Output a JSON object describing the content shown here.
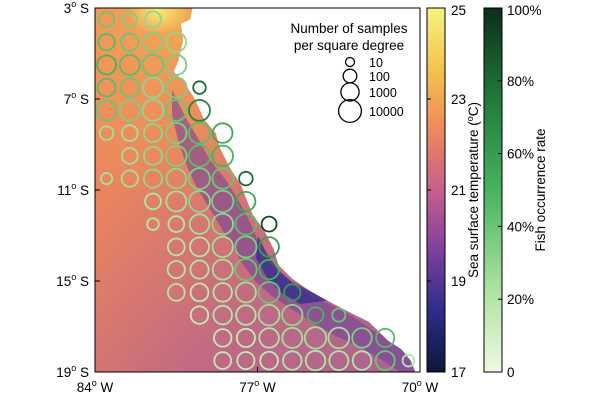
{
  "chart_data": {
    "type": "map-bubble",
    "title": "",
    "x_axis": {
      "range_deg": [
        -84,
        -70
      ],
      "ticks": [
        {
          "value": -84,
          "label": "84",
          "suffix": " W"
        },
        {
          "value": -77,
          "label": "77",
          "suffix": " W"
        },
        {
          "value": -70,
          "label": "70",
          "suffix": " W"
        }
      ]
    },
    "y_axis": {
      "range_deg": [
        -19,
        -3
      ],
      "ticks": [
        {
          "value": -3,
          "label": "3",
          "suffix": " S"
        },
        {
          "value": -7,
          "label": "7",
          "suffix": " S"
        },
        {
          "value": -11,
          "label": "11",
          "suffix": " S"
        },
        {
          "value": -15,
          "label": "15",
          "suffix": " S"
        },
        {
          "value": -19,
          "label": "19",
          "suffix": " S"
        }
      ]
    },
    "degree_symbol": "o",
    "sst_colorbar": {
      "label": "Sea surface temperature (",
      "label_unit": "C)",
      "range": [
        17,
        25
      ],
      "ticks": [
        "17",
        "19",
        "21",
        "23",
        "25"
      ],
      "colors": [
        "#0b1836",
        "#2d2c8c",
        "#7f3f9c",
        "#c65f8c",
        "#ee8a5b",
        "#f3c44f",
        "#f6f37e"
      ]
    },
    "fish_colorbar": {
      "label": "Fish occurrence rate",
      "range": [
        0,
        100
      ],
      "ticks": [
        "0",
        "20%",
        "40%",
        "60%",
        "80%",
        "100%"
      ],
      "colors": [
        "#eefae3",
        "#a6de9a",
        "#46b35f",
        "#217a3b",
        "#0c2d1a"
      ]
    },
    "size_legend": {
      "title_line1": "Number of samples",
      "title_line2": "per square degree",
      "entries": [
        {
          "value": 10,
          "label": "10"
        },
        {
          "value": 100,
          "label": "100"
        },
        {
          "value": 1000,
          "label": "1000"
        },
        {
          "value": 10000,
          "label": "10000"
        }
      ]
    },
    "coastline": [
      [
        -80.8,
        -3.0
      ],
      [
        -79.8,
        -3.0
      ],
      [
        -79.9,
        -3.5
      ],
      [
        -80.3,
        -3.7
      ],
      [
        -80.2,
        -4.4
      ],
      [
        -80.4,
        -5.3
      ],
      [
        -80.6,
        -5.8
      ],
      [
        -80.2,
        -6.2
      ],
      [
        -79.7,
        -7.0
      ],
      [
        -79.3,
        -7.9
      ],
      [
        -78.8,
        -8.5
      ],
      [
        -78.6,
        -9.2
      ],
      [
        -78.2,
        -10.0
      ],
      [
        -77.7,
        -10.8
      ],
      [
        -77.4,
        -11.6
      ],
      [
        -77.2,
        -12.1
      ],
      [
        -76.7,
        -12.8
      ],
      [
        -76.3,
        -13.6
      ],
      [
        -76.1,
        -14.3
      ],
      [
        -75.5,
        -14.9
      ],
      [
        -74.8,
        -15.4
      ],
      [
        -74.1,
        -15.8
      ],
      [
        -73.0,
        -16.4
      ],
      [
        -72.2,
        -16.8
      ],
      [
        -71.4,
        -17.6
      ],
      [
        -70.8,
        -18.0
      ],
      [
        -70.4,
        -18.5
      ],
      [
        -70.2,
        -19.0
      ],
      [
        -70.0,
        -19.0
      ],
      [
        -70.0,
        -3.0
      ]
    ],
    "samples": [
      [
        -83.5,
        -3.5,
        200,
        40
      ],
      [
        -82.5,
        -3.5,
        120,
        35
      ],
      [
        -81.5,
        -3.5,
        300,
        30
      ],
      [
        -83.5,
        -4.5,
        400,
        45
      ],
      [
        -82.5,
        -4.5,
        600,
        40
      ],
      [
        -81.5,
        -4.5,
        1500,
        35
      ],
      [
        -80.5,
        -4.5,
        2000,
        30
      ],
      [
        -83.5,
        -5.5,
        1500,
        50
      ],
      [
        -82.5,
        -5.5,
        2500,
        45
      ],
      [
        -81.5,
        -5.5,
        4000,
        40
      ],
      [
        -80.5,
        -5.5,
        2500,
        35
      ],
      [
        -83.5,
        -6.5,
        800,
        45
      ],
      [
        -82.5,
        -6.5,
        1200,
        40
      ],
      [
        -81.5,
        -6.5,
        2500,
        30
      ],
      [
        -80.5,
        -6.5,
        3000,
        35
      ],
      [
        -79.5,
        -6.5,
        60,
        80
      ],
      [
        -83.5,
        -7.5,
        2500,
        40
      ],
      [
        -82.5,
        -7.5,
        3000,
        35
      ],
      [
        -81.5,
        -7.5,
        4000,
        30
      ],
      [
        -80.5,
        -7.5,
        4000,
        40
      ],
      [
        -79.5,
        -7.5,
        4000,
        70
      ],
      [
        -83.5,
        -8.5,
        100,
        25
      ],
      [
        -82.5,
        -8.5,
        300,
        25
      ],
      [
        -81.5,
        -8.5,
        900,
        30
      ],
      [
        -80.5,
        -8.5,
        3000,
        35
      ],
      [
        -79.5,
        -8.5,
        4500,
        45
      ],
      [
        -78.5,
        -8.5,
        2000,
        55
      ],
      [
        -82.5,
        -9.5,
        300,
        25
      ],
      [
        -81.5,
        -9.5,
        900,
        30
      ],
      [
        -80.5,
        -9.5,
        3000,
        35
      ],
      [
        -79.5,
        -9.5,
        5000,
        45
      ],
      [
        -78.5,
        -9.5,
        3500,
        50
      ],
      [
        -83.5,
        -10.5,
        30,
        25
      ],
      [
        -82.5,
        -10.5,
        400,
        25
      ],
      [
        -81.5,
        -10.5,
        1000,
        30
      ],
      [
        -80.5,
        -10.5,
        2000,
        30
      ],
      [
        -79.5,
        -10.5,
        4000,
        35
      ],
      [
        -78.5,
        -10.5,
        3000,
        40
      ],
      [
        -77.5,
        -10.5,
        100,
        80
      ],
      [
        -81.5,
        -11.5,
        300,
        20
      ],
      [
        -80.5,
        -11.5,
        2500,
        25
      ],
      [
        -79.5,
        -11.5,
        4000,
        30
      ],
      [
        -78.5,
        -11.5,
        5000,
        35
      ],
      [
        -77.5,
        -11.5,
        1500,
        55
      ],
      [
        -81.5,
        -12.5,
        40,
        20
      ],
      [
        -80.5,
        -12.5,
        300,
        20
      ],
      [
        -79.5,
        -12.5,
        2000,
        25
      ],
      [
        -78.5,
        -12.5,
        3500,
        30
      ],
      [
        -77.5,
        -12.5,
        4000,
        45
      ],
      [
        -76.5,
        -12.5,
        200,
        90
      ],
      [
        -80.5,
        -13.5,
        500,
        20
      ],
      [
        -79.5,
        -13.5,
        1500,
        20
      ],
      [
        -78.5,
        -13.5,
        3000,
        25
      ],
      [
        -77.5,
        -13.5,
        4500,
        35
      ],
      [
        -76.5,
        -13.5,
        2000,
        60
      ],
      [
        -80.5,
        -14.5,
        600,
        20
      ],
      [
        -79.5,
        -14.5,
        1000,
        20
      ],
      [
        -78.5,
        -14.5,
        2500,
        25
      ],
      [
        -77.5,
        -14.5,
        5000,
        40
      ],
      [
        -76.5,
        -14.5,
        2000,
        50
      ],
      [
        -80.5,
        -15.5,
        500,
        20
      ],
      [
        -79.5,
        -15.5,
        800,
        15
      ],
      [
        -78.5,
        -15.5,
        1200,
        20
      ],
      [
        -77.5,
        -15.5,
        2500,
        25
      ],
      [
        -76.5,
        -15.5,
        4000,
        40
      ],
      [
        -75.5,
        -15.5,
        400,
        60
      ],
      [
        -79.5,
        -16.5,
        700,
        15
      ],
      [
        -78.5,
        -16.5,
        1200,
        20
      ],
      [
        -77.5,
        -16.5,
        2000,
        20
      ],
      [
        -76.5,
        -16.5,
        3500,
        25
      ],
      [
        -75.5,
        -16.5,
        3000,
        30
      ],
      [
        -74.5,
        -16.5,
        300,
        50
      ],
      [
        -73.5,
        -16.5,
        80,
        40
      ],
      [
        -78.5,
        -17.5,
        700,
        15
      ],
      [
        -77.5,
        -17.5,
        1000,
        15
      ],
      [
        -76.5,
        -17.5,
        2000,
        20
      ],
      [
        -75.5,
        -17.5,
        2500,
        25
      ],
      [
        -74.5,
        -17.5,
        5000,
        25
      ],
      [
        -73.5,
        -17.5,
        3500,
        25
      ],
      [
        -72.5,
        -17.5,
        2000,
        35
      ],
      [
        -71.5,
        -17.5,
        1000,
        45
      ],
      [
        -78.5,
        -18.5,
        500,
        15
      ],
      [
        -77.5,
        -18.5,
        600,
        15
      ],
      [
        -76.5,
        -18.5,
        800,
        15
      ],
      [
        -75.5,
        -18.5,
        1200,
        20
      ],
      [
        -74.5,
        -18.5,
        2000,
        20
      ],
      [
        -73.5,
        -18.5,
        1500,
        20
      ],
      [
        -72.5,
        -18.5,
        1200,
        20
      ],
      [
        -71.5,
        -18.5,
        1500,
        40
      ],
      [
        -70.5,
        -18.5,
        40,
        20
      ]
    ]
  }
}
